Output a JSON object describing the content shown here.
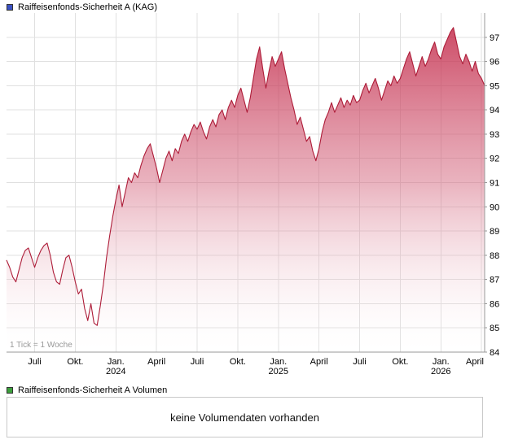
{
  "price_chart": {
    "legend": "Raiffeisenfonds-Sicherheit A (KAG)",
    "tick_note": "1 Tick = 1 Woche",
    "colors": {
      "line": "#ad1c38",
      "fill_top": "#c22646",
      "fill_mid": "#d4667e",
      "fill_bottom": "#ffffff",
      "legend_swatch": "#3b52c3",
      "grid": "#e0e0e0",
      "axis": "#9a9a9a",
      "note_text": "#999999"
    }
  },
  "volume_panel": {
    "legend": "Raiffeisenfonds-Sicherheit A Volumen",
    "legend_swatch": "#3da03d",
    "message": "keine Volumendaten vorhanden"
  },
  "chart_data": {
    "type": "area",
    "title": "Raiffeisenfonds-Sicherheit A (KAG)",
    "x_unit": "week",
    "tick_note": "1 Tick = 1 Woche",
    "x_range": [
      "2023-05",
      "2026-04"
    ],
    "ylim": [
      84,
      98
    ],
    "grid": true,
    "legend_position": "top-left",
    "y_ticks": [
      84,
      85,
      86,
      87,
      88,
      89,
      90,
      91,
      92,
      93,
      94,
      95,
      96,
      97
    ],
    "x_ticks": [
      {
        "week": 9,
        "label": "Juli"
      },
      {
        "week": 22,
        "label": "Okt."
      },
      {
        "week": 35,
        "label": "Jan.",
        "year": "2024"
      },
      {
        "week": 48,
        "label": "April"
      },
      {
        "week": 61,
        "label": "Juli"
      },
      {
        "week": 74,
        "label": "Okt."
      },
      {
        "week": 87,
        "label": "Jan.",
        "year": "2025"
      },
      {
        "week": 100,
        "label": "April"
      },
      {
        "week": 113,
        "label": "Juli"
      },
      {
        "week": 126,
        "label": "Okt."
      },
      {
        "week": 139,
        "label": "Jan.",
        "year": "2026"
      },
      {
        "week": 152,
        "label": "April"
      }
    ],
    "values": [
      87.8,
      87.5,
      87.1,
      86.9,
      87.4,
      87.9,
      88.2,
      88.3,
      87.9,
      87.5,
      87.9,
      88.2,
      88.4,
      88.5,
      88.0,
      87.3,
      86.9,
      86.8,
      87.4,
      87.9,
      88.0,
      87.5,
      86.9,
      86.4,
      86.6,
      85.8,
      85.3,
      86.0,
      85.2,
      85.1,
      85.9,
      86.8,
      87.9,
      88.8,
      89.6,
      90.3,
      90.9,
      90.0,
      90.6,
      91.2,
      91.0,
      91.4,
      91.2,
      91.7,
      92.1,
      92.4,
      92.6,
      92.1,
      91.6,
      91.0,
      91.5,
      92.0,
      92.3,
      91.9,
      92.4,
      92.2,
      92.7,
      93.0,
      92.7,
      93.1,
      93.4,
      93.2,
      93.5,
      93.1,
      92.8,
      93.3,
      93.6,
      93.3,
      93.8,
      94.0,
      93.6,
      94.1,
      94.4,
      94.1,
      94.6,
      94.9,
      94.4,
      93.9,
      94.5,
      95.3,
      96.1,
      96.6,
      95.7,
      94.9,
      95.6,
      96.2,
      95.8,
      96.1,
      96.4,
      95.7,
      95.1,
      94.5,
      94.0,
      93.4,
      93.7,
      93.2,
      92.7,
      92.9,
      92.3,
      91.9,
      92.4,
      93.1,
      93.6,
      93.9,
      94.3,
      93.9,
      94.2,
      94.5,
      94.1,
      94.4,
      94.2,
      94.6,
      94.3,
      94.4,
      94.8,
      95.1,
      94.7,
      95.0,
      95.3,
      94.9,
      94.4,
      94.8,
      95.2,
      95.0,
      95.4,
      95.1,
      95.3,
      95.7,
      96.1,
      96.4,
      95.9,
      95.4,
      95.8,
      96.2,
      95.8,
      96.1,
      96.5,
      96.8,
      96.3,
      96.1,
      96.6,
      96.9,
      97.2,
      97.4,
      96.8,
      96.2,
      95.9,
      96.3,
      96.0,
      95.6,
      96.0,
      95.5,
      95.3,
      95.0
    ]
  }
}
